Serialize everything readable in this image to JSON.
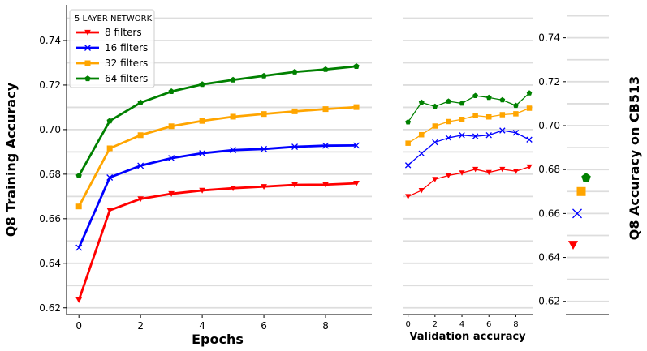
{
  "colors": {
    "8 filters": "#ff0000",
    "16 filters": "#0000ff",
    "32 filters": "#ffa500",
    "64 filters": "#008000",
    "grid": "#dddddd",
    "axis": "#000000"
  },
  "chart_data": [
    {
      "id": "training",
      "type": "line",
      "xlabel": "Epochs",
      "ylabel": "Q8 Training Accuracy",
      "xlim": [
        -0.4,
        9.5
      ],
      "ylim": [
        0.617,
        0.756
      ],
      "xticks": [
        0,
        2,
        4,
        6,
        8
      ],
      "yticks": [
        0.62,
        0.64,
        0.66,
        0.68,
        0.7,
        0.72,
        0.74
      ],
      "ytick_labels": [
        "0.62",
        "0.64",
        "0.66",
        "0.68",
        "0.70",
        "0.72",
        "0.74"
      ],
      "grid": "horizontal",
      "legend": {
        "title": "5 LAYER NETWORK",
        "placement": "top-left",
        "entries": [
          "8 filters",
          "16 filters",
          "32 filters",
          "64 filters"
        ]
      },
      "x": [
        0,
        1,
        2,
        3,
        4,
        5,
        6,
        7,
        8,
        9
      ],
      "series": [
        {
          "name": "8 filters",
          "marker": "triangle-down",
          "values": [
            0.6235,
            0.6638,
            0.6689,
            0.6712,
            0.6727,
            0.6737,
            0.6744,
            0.6752,
            0.6753,
            0.6759
          ]
        },
        {
          "name": "16 filters",
          "marker": "x",
          "values": [
            0.647,
            0.6785,
            0.6838,
            0.6872,
            0.6894,
            0.6908,
            0.6913,
            0.6923,
            0.6928,
            0.6929
          ]
        },
        {
          "name": "32 filters",
          "marker": "square",
          "values": [
            0.6655,
            0.6916,
            0.6975,
            0.7015,
            0.7039,
            0.7058,
            0.707,
            0.7082,
            0.7092,
            0.7101
          ]
        },
        {
          "name": "64 filters",
          "marker": "pentagon",
          "values": [
            0.6793,
            0.7039,
            0.7121,
            0.7171,
            0.7203,
            0.7223,
            0.7241,
            0.7259,
            0.727,
            0.7284
          ]
        }
      ]
    },
    {
      "id": "validation",
      "type": "line",
      "xlabel": "Validation accuracy",
      "ylabel": "",
      "xlim": [
        -0.4,
        9.3
      ],
      "ylim": [
        0.617,
        0.756
      ],
      "xticks": [
        0,
        2,
        4,
        6,
        8
      ],
      "grid": "horizontal",
      "x": [
        0,
        1,
        2,
        3,
        4,
        5,
        6,
        7,
        8,
        9
      ],
      "series": [
        {
          "name": "8 filters",
          "marker": "triangle-down",
          "values": [
            0.67,
            0.6727,
            0.6777,
            0.6794,
            0.6806,
            0.6822,
            0.6808,
            0.6822,
            0.6813,
            0.6833
          ]
        },
        {
          "name": "16 filters",
          "marker": "x",
          "values": [
            0.684,
            0.6893,
            0.6943,
            0.6963,
            0.6975,
            0.697,
            0.6975,
            0.6996,
            0.6986,
            0.6955
          ]
        },
        {
          "name": "32 filters",
          "marker": "square",
          "values": [
            0.6939,
            0.6977,
            0.7016,
            0.7036,
            0.7046,
            0.7063,
            0.7057,
            0.7067,
            0.7071,
            0.7096
          ]
        },
        {
          "name": "64 filters",
          "marker": "pentagon",
          "values": [
            0.7034,
            0.7122,
            0.7104,
            0.7127,
            0.7118,
            0.7152,
            0.7144,
            0.7133,
            0.7108,
            0.7164
          ]
        }
      ]
    },
    {
      "id": "cb513",
      "type": "scatter",
      "ylabel": "Q8 Accuracy on CB513",
      "ylim": [
        0.614,
        0.755
      ],
      "yticks": [
        0.62,
        0.64,
        0.66,
        0.68,
        0.7,
        0.72,
        0.74
      ],
      "ytick_labels": [
        "0.62",
        "0.64",
        "0.66",
        "0.68",
        "0.70",
        "0.72",
        "0.74"
      ],
      "grid": "horizontal",
      "points": [
        {
          "name": "8 filters",
          "marker": "triangle-down",
          "rank": 0,
          "value": 0.6457
        },
        {
          "name": "16 filters",
          "marker": "x",
          "rank": 1,
          "value": 0.66
        },
        {
          "name": "32 filters",
          "marker": "square",
          "rank": 2,
          "value": 0.67
        },
        {
          "name": "64 filters",
          "marker": "pentagon",
          "rank": 3,
          "value": 0.6763
        }
      ]
    }
  ]
}
